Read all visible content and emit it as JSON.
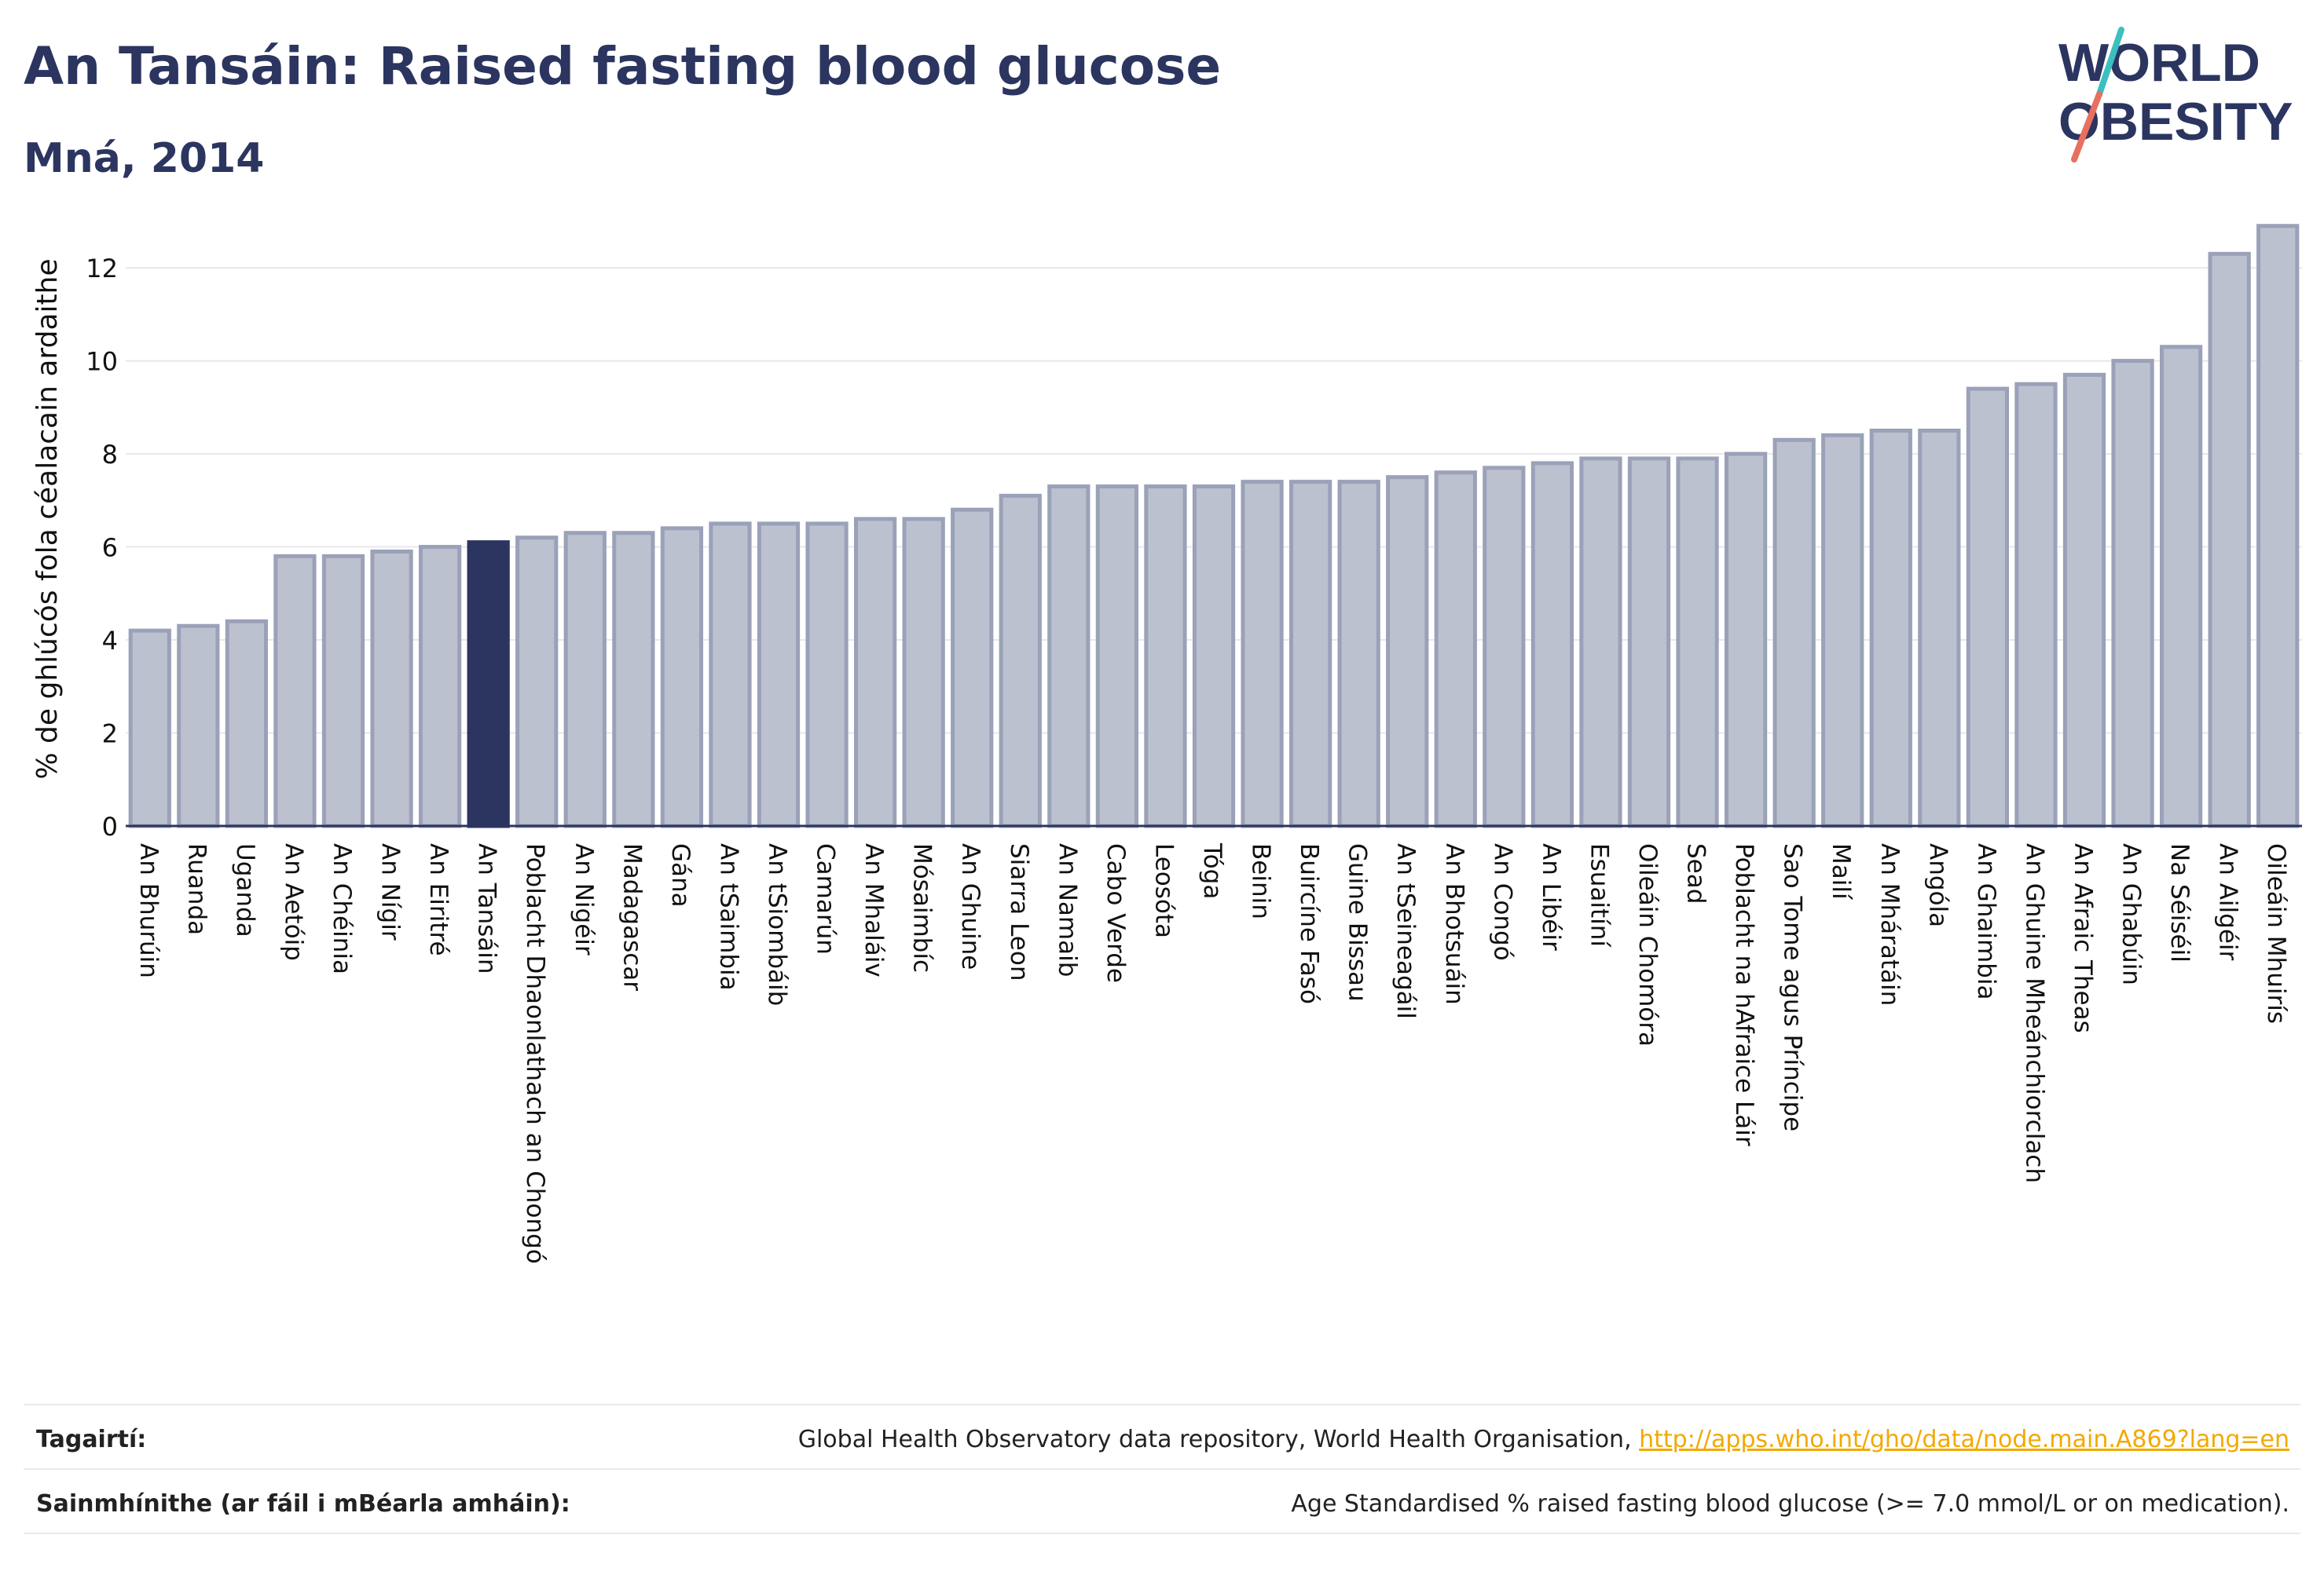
{
  "header": {
    "title": "An Tansáin: Raised fasting blood glucose",
    "subtitle": "Mná, 2014"
  },
  "logo": {
    "line1": "WORLD",
    "line2": "OBESITY"
  },
  "colors": {
    "bar": "#bcc1cf",
    "bar_edge": "#9aa1b8",
    "highlight": "#2b3560",
    "text": "#2b3560",
    "grid": "#e8e8ec",
    "link": "#f2a900",
    "logo_teal": "#3cbfbf",
    "logo_coral": "#e8705f"
  },
  "chart_data": {
    "type": "bar",
    "ylabel": "% de ghlúcós fola céalacain ardaithe",
    "ylim": [
      0,
      13.2
    ],
    "yticks": [
      0,
      2,
      4,
      6,
      8,
      10,
      12
    ],
    "grid": true,
    "highlight": "An Tansáin",
    "categories": [
      "An Bhurúin",
      "Ruanda",
      "Uganda",
      "An Aetóip",
      "An Chéinia",
      "An Nígir",
      "An Eiritré",
      "An Tansáin",
      "Poblacht Dhaonlathach an Chongó",
      "An Nigéir",
      "Madagascar",
      "Gána",
      "An tSaimbia",
      "An tSiombáib",
      "Camarún",
      "An Mhaláiv",
      "Mósaimbíc",
      "An Ghuine",
      "Siarra Leon",
      "An Namaib",
      "Cabo Verde",
      "Leosóta",
      "Tóga",
      "Beinin",
      "Buircíne Fasó",
      "Guine Bissau",
      "An tSeineagáil",
      "An Bhotsuáin",
      "An Congó",
      "An Libéir",
      "Esuaitíní",
      "Oileáin Chomóra",
      "Sead",
      "Poblacht na hAfraice Láir",
      "Sao Tome agus Príncipe",
      "Mailí",
      "An Mháratáin",
      "Angóla",
      "An Ghaimbia",
      "An Ghuine Mheánchiorclach",
      "An Afraic Theas",
      "An Ghabúin",
      "Na Séiséil",
      "An Ailgéir",
      "Oileáin Mhuirís"
    ],
    "values": [
      4.2,
      4.3,
      4.4,
      5.8,
      5.8,
      5.9,
      6.0,
      6.1,
      6.2,
      6.3,
      6.3,
      6.4,
      6.5,
      6.5,
      6.5,
      6.6,
      6.6,
      6.8,
      7.1,
      7.3,
      7.3,
      7.3,
      7.3,
      7.4,
      7.4,
      7.4,
      7.5,
      7.6,
      7.7,
      7.8,
      7.9,
      7.9,
      7.9,
      8.0,
      8.3,
      8.4,
      8.5,
      8.5,
      9.4,
      9.5,
      9.7,
      10.0,
      10.3,
      12.3,
      12.9
    ]
  },
  "footer": {
    "references_label": "Tagairtí:",
    "references_text": "Global Health Observatory data repository, World Health Organisation, ",
    "references_link": "http://apps.who.int/gho/data/node.main.A869?lang=en",
    "definitions_label": "Sainmhínithe (ar fáil i mBéarla amháin):",
    "definitions_text": "Age Standardised % raised fasting blood glucose (>= 7.0 mmol/L or on medication)."
  }
}
